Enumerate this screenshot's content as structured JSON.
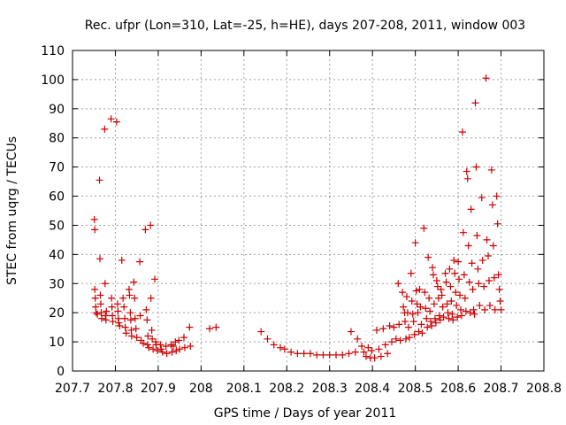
{
  "chart_data": {
    "type": "scatter",
    "title": "Rec. ufpr (Lon=310, Lat=-25, h=HE), days 207-208, 2011, window 003",
    "xlabel": "GPS time / Days of year 2011",
    "ylabel": "STEC from uqrg / TECUs",
    "xlim": [
      207.7,
      208.8
    ],
    "ylim": [
      0,
      110
    ],
    "grid": true,
    "marker": "+",
    "color": "#cc0000",
    "xticks": [
      207.7,
      207.8,
      207.9,
      208.0,
      208.1,
      208.2,
      208.3,
      208.4,
      208.5,
      208.6,
      208.7,
      208.8
    ],
    "xtick_labels": [
      "207.7",
      "207.8",
      "207.9",
      "208",
      "208.1",
      "208.2",
      "208.3",
      "208.4",
      "208.5",
      "208.6",
      "208.7",
      "208.8"
    ],
    "yticks": [
      0,
      10,
      20,
      30,
      40,
      50,
      60,
      70,
      80,
      90,
      100,
      110
    ],
    "ytick_labels": [
      "0",
      "10",
      "20",
      "30",
      "40",
      "50",
      "60",
      "70",
      "80",
      "90",
      "100",
      "110"
    ],
    "series": [
      {
        "name": "STEC",
        "points": [
          [
            207.751,
            52
          ],
          [
            207.752,
            48.5
          ],
          [
            207.752,
            28
          ],
          [
            207.753,
            25
          ],
          [
            207.754,
            22
          ],
          [
            207.755,
            20
          ],
          [
            207.758,
            19.5
          ],
          [
            207.763,
            65.5
          ],
          [
            207.764,
            38.5
          ],
          [
            207.765,
            26
          ],
          [
            207.766,
            23
          ],
          [
            207.767,
            20
          ],
          [
            207.768,
            18
          ],
          [
            207.775,
            83
          ],
          [
            207.776,
            30
          ],
          [
            207.777,
            19
          ],
          [
            207.778,
            17.5
          ],
          [
            207.779,
            20.5
          ],
          [
            207.79,
            86.5
          ],
          [
            207.791,
            25
          ],
          [
            207.792,
            22
          ],
          [
            207.793,
            19
          ],
          [
            207.794,
            17
          ],
          [
            207.803,
            85.5
          ],
          [
            207.805,
            23
          ],
          [
            207.806,
            20.5
          ],
          [
            207.807,
            18
          ],
          [
            207.808,
            16.5
          ],
          [
            207.81,
            15.5
          ],
          [
            207.815,
            38
          ],
          [
            207.818,
            25
          ],
          [
            207.82,
            22
          ],
          [
            207.822,
            18
          ],
          [
            207.823,
            15
          ],
          [
            207.825,
            13
          ],
          [
            207.832,
            28
          ],
          [
            207.833,
            26
          ],
          [
            207.835,
            20
          ],
          [
            207.836,
            17.5
          ],
          [
            207.837,
            14
          ],
          [
            207.838,
            12
          ],
          [
            207.843,
            30.5
          ],
          [
            207.845,
            25
          ],
          [
            207.846,
            18
          ],
          [
            207.848,
            14.5
          ],
          [
            207.85,
            11.5
          ],
          [
            207.857,
            37.5
          ],
          [
            207.858,
            19
          ],
          [
            207.86,
            10.5
          ],
          [
            207.865,
            9.5
          ],
          [
            207.87,
            48.5
          ],
          [
            207.872,
            21
          ],
          [
            207.874,
            17.5
          ],
          [
            207.875,
            9
          ],
          [
            207.876,
            12
          ],
          [
            207.878,
            8
          ],
          [
            207.882,
            50
          ],
          [
            207.883,
            25
          ],
          [
            207.885,
            14
          ],
          [
            207.886,
            11
          ],
          [
            207.888,
            7.5
          ],
          [
            207.892,
            31.5
          ],
          [
            207.894,
            10
          ],
          [
            207.895,
            9
          ],
          [
            207.898,
            7
          ],
          [
            207.905,
            9
          ],
          [
            207.907,
            7.5
          ],
          [
            207.91,
            6.5
          ],
          [
            207.918,
            8.5
          ],
          [
            207.92,
            6
          ],
          [
            207.93,
            9
          ],
          [
            207.932,
            6.5
          ],
          [
            207.935,
            8.5
          ],
          [
            207.94,
            10
          ],
          [
            207.942,
            7
          ],
          [
            207.948,
            10.5
          ],
          [
            207.95,
            7.5
          ],
          [
            207.96,
            11.5
          ],
          [
            207.962,
            8
          ],
          [
            207.973,
            15
          ],
          [
            207.975,
            8.5
          ],
          [
            208.02,
            14.5
          ],
          [
            208.035,
            15
          ],
          [
            208.14,
            13.5
          ],
          [
            208.155,
            11
          ],
          [
            208.17,
            9
          ],
          [
            208.185,
            8
          ],
          [
            208.195,
            7.5
          ],
          [
            208.21,
            6.5
          ],
          [
            208.225,
            6
          ],
          [
            208.24,
            6
          ],
          [
            208.255,
            6
          ],
          [
            208.27,
            5.5
          ],
          [
            208.285,
            5.5
          ],
          [
            208.3,
            5.5
          ],
          [
            208.315,
            5.5
          ],
          [
            208.33,
            5.5
          ],
          [
            208.345,
            6
          ],
          [
            208.36,
            6.5
          ],
          [
            208.35,
            13.5
          ],
          [
            208.365,
            11
          ],
          [
            208.375,
            8.5
          ],
          [
            208.38,
            6.5
          ],
          [
            208.385,
            5
          ],
          [
            208.39,
            8
          ],
          [
            208.395,
            4.5
          ],
          [
            208.398,
            7
          ],
          [
            208.405,
            4.5
          ],
          [
            208.41,
            14
          ],
          [
            208.415,
            7.5
          ],
          [
            208.42,
            5
          ],
          [
            208.425,
            14.5
          ],
          [
            208.43,
            9
          ],
          [
            208.435,
            6
          ],
          [
            208.44,
            15.5
          ],
          [
            208.445,
            10
          ],
          [
            208.45,
            15
          ],
          [
            208.455,
            11
          ],
          [
            208.46,
            30
          ],
          [
            208.462,
            16
          ],
          [
            208.465,
            10.5
          ],
          [
            208.47,
            27
          ],
          [
            208.472,
            22
          ],
          [
            208.475,
            20
          ],
          [
            208.476,
            17
          ],
          [
            208.478,
            11
          ],
          [
            208.48,
            25.5
          ],
          [
            208.482,
            20
          ],
          [
            208.484,
            15
          ],
          [
            208.486,
            11.5
          ],
          [
            208.49,
            33.5
          ],
          [
            208.492,
            24
          ],
          [
            208.494,
            19.5
          ],
          [
            208.496,
            17
          ],
          [
            208.498,
            12.5
          ],
          [
            208.5,
            44
          ],
          [
            208.502,
            27.5
          ],
          [
            208.504,
            23
          ],
          [
            208.506,
            20
          ],
          [
            208.508,
            13.5
          ],
          [
            208.51,
            28
          ],
          [
            208.512,
            22
          ],
          [
            208.514,
            16
          ],
          [
            208.516,
            13
          ],
          [
            208.52,
            49
          ],
          [
            208.522,
            27
          ],
          [
            208.524,
            21.5
          ],
          [
            208.526,
            18
          ],
          [
            208.528,
            15
          ],
          [
            208.53,
            39
          ],
          [
            208.532,
            25
          ],
          [
            208.534,
            20.5
          ],
          [
            208.536,
            17
          ],
          [
            208.538,
            15.5
          ],
          [
            208.54,
            35.5
          ],
          [
            208.542,
            33
          ],
          [
            208.544,
            23
          ],
          [
            208.546,
            18
          ],
          [
            208.548,
            16.5
          ],
          [
            208.55,
            31
          ],
          [
            208.552,
            29
          ],
          [
            208.554,
            25
          ],
          [
            208.556,
            19
          ],
          [
            208.558,
            17.5
          ],
          [
            208.56,
            28
          ],
          [
            208.562,
            26
          ],
          [
            208.564,
            22
          ],
          [
            208.566,
            18.5
          ],
          [
            208.57,
            33.5
          ],
          [
            208.572,
            30.5
          ],
          [
            208.574,
            23
          ],
          [
            208.576,
            20
          ],
          [
            208.578,
            18
          ],
          [
            208.58,
            35
          ],
          [
            208.582,
            29
          ],
          [
            208.584,
            24
          ],
          [
            208.586,
            19.5
          ],
          [
            208.588,
            17.5
          ],
          [
            208.59,
            38
          ],
          [
            208.592,
            33.5
          ],
          [
            208.594,
            27
          ],
          [
            208.596,
            22.5
          ],
          [
            208.598,
            18.5
          ],
          [
            208.6,
            37.5
          ],
          [
            208.602,
            31.5
          ],
          [
            208.604,
            26
          ],
          [
            208.606,
            21
          ],
          [
            208.608,
            19
          ],
          [
            208.61,
            82
          ],
          [
            208.612,
            47.5
          ],
          [
            208.614,
            33
          ],
          [
            208.616,
            25
          ],
          [
            208.618,
            20.5
          ],
          [
            208.62,
            68.5
          ],
          [
            208.622,
            66
          ],
          [
            208.624,
            43
          ],
          [
            208.626,
            30.5
          ],
          [
            208.628,
            20
          ],
          [
            208.63,
            55.5
          ],
          [
            208.632,
            37
          ],
          [
            208.634,
            28
          ],
          [
            208.636,
            21
          ],
          [
            208.638,
            19.5
          ],
          [
            208.64,
            92
          ],
          [
            208.642,
            70
          ],
          [
            208.644,
            46.5
          ],
          [
            208.646,
            35
          ],
          [
            208.648,
            30
          ],
          [
            208.65,
            22.5
          ],
          [
            208.655,
            59.5
          ],
          [
            208.657,
            38
          ],
          [
            208.66,
            29
          ],
          [
            208.662,
            21
          ],
          [
            208.665,
            100.5
          ],
          [
            208.667,
            45
          ],
          [
            208.67,
            39.5
          ],
          [
            208.672,
            31
          ],
          [
            208.674,
            22.5
          ],
          [
            208.678,
            69
          ],
          [
            208.68,
            57
          ],
          [
            208.682,
            43
          ],
          [
            208.684,
            32
          ],
          [
            208.686,
            21
          ],
          [
            208.69,
            60
          ],
          [
            208.692,
            50.5
          ],
          [
            208.694,
            33
          ],
          [
            208.696,
            28
          ],
          [
            208.698,
            24
          ],
          [
            208.7,
            21
          ]
        ]
      }
    ]
  }
}
